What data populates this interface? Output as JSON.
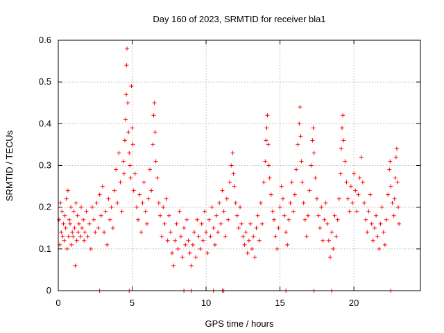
{
  "chart_data": {
    "type": "scatter",
    "title": "Day 160 of 2023, SRMTID for receiver bla1",
    "xlabel": "GPS time / hours",
    "ylabel": "SRMTID / TECUs",
    "xlim": [
      0,
      24.5
    ],
    "ylim": [
      0,
      0.6
    ],
    "xticks": [
      0,
      5,
      10,
      15,
      20
    ],
    "xtick_labels": [
      "0",
      "5",
      "10",
      "15",
      "20"
    ],
    "yticks": [
      0,
      0.1,
      0.2,
      0.3,
      0.4,
      0.5,
      0.6
    ],
    "ytick_labels": [
      "0",
      "0.1",
      "0.2",
      "0.3",
      "0.4",
      "0.5",
      "0.6"
    ],
    "grid": true,
    "marker": "plus",
    "color": "#ff0000",
    "series": [
      {
        "name": "SRMTID",
        "points": [
          [
            0.05,
            0.17
          ],
          [
            0.1,
            0.11
          ],
          [
            0.15,
            0.21
          ],
          [
            0.2,
            0.14
          ],
          [
            0.25,
            0.19
          ],
          [
            0.3,
            0.13
          ],
          [
            0.35,
            0.16
          ],
          [
            0.4,
            0.12
          ],
          [
            0.45,
            0.18
          ],
          [
            0.5,
            0.15
          ],
          [
            0.55,
            0.22
          ],
          [
            0.6,
            0.1
          ],
          [
            0.65,
            0.24
          ],
          [
            0.7,
            0.13
          ],
          [
            0.75,
            0.17
          ],
          [
            0.8,
            0.16
          ],
          [
            0.85,
            0.2
          ],
          [
            0.9,
            0.11
          ],
          [
            0.95,
            0.14
          ],
          [
            1.0,
            0.13
          ],
          [
            1.05,
            0.19
          ],
          [
            1.1,
            0.15
          ],
          [
            1.15,
            0.06
          ],
          [
            1.2,
            0.21
          ],
          [
            1.25,
            0.12
          ],
          [
            1.3,
            0.18
          ],
          [
            1.35,
            0.14
          ],
          [
            1.4,
            0.16
          ],
          [
            1.5,
            0.13
          ],
          [
            1.55,
            0.2
          ],
          [
            1.6,
            0.15
          ],
          [
            1.7,
            0.17
          ],
          [
            1.75,
            0.12
          ],
          [
            1.8,
            0.14
          ],
          [
            1.9,
            0.19
          ],
          [
            2.0,
            0.13
          ],
          [
            2.1,
            0.16
          ],
          [
            2.2,
            0.1
          ],
          [
            2.3,
            0.2
          ],
          [
            2.4,
            0.17
          ],
          [
            2.5,
            0.14
          ],
          [
            2.6,
            0.21
          ],
          [
            2.7,
            0.15
          ],
          [
            2.8,
            0.23
          ],
          [
            2.9,
            0.18
          ],
          [
            3.0,
            0.25
          ],
          [
            3.1,
            0.14
          ],
          [
            3.2,
            0.19
          ],
          [
            3.3,
            0.11
          ],
          [
            3.4,
            0.22
          ],
          [
            3.5,
            0.17
          ],
          [
            3.6,
            0.2
          ],
          [
            3.7,
            0.15
          ],
          [
            3.8,
            0.24
          ],
          [
            3.9,
            0.29
          ],
          [
            4.0,
            0.21
          ],
          [
            4.1,
            0.33
          ],
          [
            4.2,
            0.26
          ],
          [
            4.3,
            0.19
          ],
          [
            4.4,
            0.31
          ],
          [
            4.45,
            0.28
          ],
          [
            4.5,
            0.36
          ],
          [
            4.55,
            0.41
          ],
          [
            4.6,
            0.47
          ],
          [
            4.62,
            0.54
          ],
          [
            4.65,
            0.58
          ],
          [
            4.7,
            0.45
          ],
          [
            4.75,
            0.38
          ],
          [
            4.8,
            0.33
          ],
          [
            4.85,
            0.3
          ],
          [
            4.9,
            0.27
          ],
          [
            4.95,
            0.49
          ],
          [
            5.0,
            0.39
          ],
          [
            5.05,
            0.35
          ],
          [
            5.1,
            0.24
          ],
          [
            5.2,
            0.28
          ],
          [
            5.3,
            0.2
          ],
          [
            5.4,
            0.17
          ],
          [
            5.5,
            0.23
          ],
          [
            5.6,
            0.14
          ],
          [
            5.7,
            0.21
          ],
          [
            5.8,
            0.26
          ],
          [
            5.9,
            0.19
          ],
          [
            6.0,
            0.16
          ],
          [
            6.1,
            0.22
          ],
          [
            6.2,
            0.29
          ],
          [
            6.3,
            0.24
          ],
          [
            6.4,
            0.35
          ],
          [
            6.45,
            0.42
          ],
          [
            6.5,
            0.45
          ],
          [
            6.55,
            0.38
          ],
          [
            6.6,
            0.31
          ],
          [
            6.7,
            0.27
          ],
          [
            6.8,
            0.21
          ],
          [
            6.9,
            0.18
          ],
          [
            7.0,
            0.13
          ],
          [
            7.1,
            0.2
          ],
          [
            7.2,
            0.16
          ],
          [
            7.3,
            0.22
          ],
          [
            7.4,
            0.12
          ],
          [
            7.5,
            0.18
          ],
          [
            7.6,
            0.14
          ],
          [
            7.7,
            0.09
          ],
          [
            7.8,
            0.06
          ],
          [
            7.9,
            0.12
          ],
          [
            8.0,
            0.16
          ],
          [
            8.1,
            0.1
          ],
          [
            8.2,
            0.19
          ],
          [
            8.3,
            0.13
          ],
          [
            8.4,
            0.08
          ],
          [
            8.5,
            0.15
          ],
          [
            8.6,
            0.11
          ],
          [
            8.7,
            0.17
          ],
          [
            8.8,
            0.12
          ],
          [
            8.9,
            0.09
          ],
          [
            9.0,
            0.06
          ],
          [
            9.1,
            0.11
          ],
          [
            9.2,
            0.14
          ],
          [
            9.3,
            0.08
          ],
          [
            9.4,
            0.17
          ],
          [
            9.5,
            0.13
          ],
          [
            9.6,
            0.1
          ],
          [
            9.7,
            0.16
          ],
          [
            9.8,
            0.12
          ],
          [
            9.9,
            0.19
          ],
          [
            10.0,
            0.14
          ],
          [
            10.1,
            0.09
          ],
          [
            10.2,
            0.17
          ],
          [
            10.3,
            0.13
          ],
          [
            10.4,
            0.2
          ],
          [
            10.5,
            0.15
          ],
          [
            10.6,
            0.11
          ],
          [
            10.7,
            0.18
          ],
          [
            10.8,
            0.14
          ],
          [
            10.9,
            0.21
          ],
          [
            11.0,
            0.16
          ],
          [
            11.1,
            0.24
          ],
          [
            11.2,
            0.19
          ],
          [
            11.3,
            0.13
          ],
          [
            11.4,
            0.22
          ],
          [
            11.5,
            0.17
          ],
          [
            11.6,
            0.26
          ],
          [
            11.7,
            0.3
          ],
          [
            11.8,
            0.33
          ],
          [
            11.85,
            0.28
          ],
          [
            11.9,
            0.25
          ],
          [
            12.0,
            0.21
          ],
          [
            12.1,
            0.18
          ],
          [
            12.2,
            0.15
          ],
          [
            12.3,
            0.2
          ],
          [
            12.4,
            0.16
          ],
          [
            12.5,
            0.13
          ],
          [
            12.6,
            0.11
          ],
          [
            12.7,
            0.14
          ],
          [
            12.8,
            0.09
          ],
          [
            12.9,
            0.12
          ],
          [
            13.0,
            0.16
          ],
          [
            13.1,
            0.1
          ],
          [
            13.2,
            0.13
          ],
          [
            13.3,
            0.08
          ],
          [
            13.4,
            0.15
          ],
          [
            13.5,
            0.18
          ],
          [
            13.6,
            0.12
          ],
          [
            13.7,
            0.21
          ],
          [
            13.8,
            0.16
          ],
          [
            13.9,
            0.26
          ],
          [
            14.0,
            0.31
          ],
          [
            14.05,
            0.36
          ],
          [
            14.1,
            0.39
          ],
          [
            14.15,
            0.42
          ],
          [
            14.2,
            0.35
          ],
          [
            14.25,
            0.3
          ],
          [
            14.3,
            0.27
          ],
          [
            14.4,
            0.23
          ],
          [
            14.5,
            0.19
          ],
          [
            14.6,
            0.17
          ],
          [
            14.7,
            0.13
          ],
          [
            14.8,
            0.1
          ],
          [
            14.9,
            0.15
          ],
          [
            15.0,
            0.2
          ],
          [
            15.1,
            0.25
          ],
          [
            15.2,
            0.22
          ],
          [
            15.3,
            0.18
          ],
          [
            15.4,
            0.14
          ],
          [
            15.5,
            0.11
          ],
          [
            15.6,
            0.17
          ],
          [
            15.7,
            0.21
          ],
          [
            15.8,
            0.26
          ],
          [
            15.9,
            0.19
          ],
          [
            16.0,
            0.23
          ],
          [
            16.1,
            0.29
          ],
          [
            16.2,
            0.35
          ],
          [
            16.3,
            0.4
          ],
          [
            16.35,
            0.44
          ],
          [
            16.4,
            0.37
          ],
          [
            16.45,
            0.31
          ],
          [
            16.5,
            0.26
          ],
          [
            16.6,
            0.21
          ],
          [
            16.7,
            0.17
          ],
          [
            16.8,
            0.13
          ],
          [
            16.9,
            0.18
          ],
          [
            17.0,
            0.24
          ],
          [
            17.1,
            0.3
          ],
          [
            17.2,
            0.36
          ],
          [
            17.25,
            0.39
          ],
          [
            17.3,
            0.33
          ],
          [
            17.4,
            0.27
          ],
          [
            17.5,
            0.22
          ],
          [
            17.6,
            0.18
          ],
          [
            17.7,
            0.15
          ],
          [
            17.8,
            0.2
          ],
          [
            17.9,
            0.12
          ],
          [
            18.0,
            0.17
          ],
          [
            18.1,
            0.21
          ],
          [
            18.2,
            0.16
          ],
          [
            18.3,
            0.12
          ],
          [
            18.4,
            0.08
          ],
          [
            18.5,
            0.14
          ],
          [
            18.6,
            0.1
          ],
          [
            18.7,
            0.18
          ],
          [
            18.8,
            0.13
          ],
          [
            18.9,
            0.17
          ],
          [
            19.0,
            0.22
          ],
          [
            19.1,
            0.28
          ],
          [
            19.15,
            0.34
          ],
          [
            19.2,
            0.39
          ],
          [
            19.25,
            0.42
          ],
          [
            19.3,
            0.36
          ],
          [
            19.4,
            0.31
          ],
          [
            19.5,
            0.26
          ],
          [
            19.6,
            0.22
          ],
          [
            19.7,
            0.19
          ],
          [
            19.8,
            0.25
          ],
          [
            19.9,
            0.21
          ],
          [
            20.0,
            0.28
          ],
          [
            20.1,
            0.24
          ],
          [
            20.2,
            0.19
          ],
          [
            20.3,
            0.23
          ],
          [
            20.4,
            0.27
          ],
          [
            20.5,
            0.32
          ],
          [
            20.6,
            0.26
          ],
          [
            20.7,
            0.21
          ],
          [
            20.8,
            0.17
          ],
          [
            20.9,
            0.14
          ],
          [
            21.0,
            0.19
          ],
          [
            21.1,
            0.23
          ],
          [
            21.2,
            0.16
          ],
          [
            21.3,
            0.12
          ],
          [
            21.4,
            0.15
          ],
          [
            21.5,
            0.18
          ],
          [
            21.6,
            0.13
          ],
          [
            21.7,
            0.1
          ],
          [
            21.8,
            0.16
          ],
          [
            21.9,
            0.2
          ],
          [
            22.0,
            0.14
          ],
          [
            22.1,
            0.11
          ],
          [
            22.2,
            0.17
          ],
          [
            22.3,
            0.23
          ],
          [
            22.4,
            0.29
          ],
          [
            22.45,
            0.31
          ],
          [
            22.5,
            0.25
          ],
          [
            22.6,
            0.21
          ],
          [
            22.7,
            0.18
          ],
          [
            22.75,
            0.22
          ],
          [
            22.8,
            0.27
          ],
          [
            22.85,
            0.32
          ],
          [
            22.9,
            0.34
          ],
          [
            22.95,
            0.26
          ],
          [
            23.0,
            0.2
          ],
          [
            23.05,
            0.16
          ],
          [
            8.5,
            0.0
          ],
          [
            9.0,
            0.0
          ],
          [
            10.5,
            0.0
          ],
          [
            11.1,
            0.0
          ],
          [
            11.2,
            0.0
          ],
          [
            15.4,
            0.0
          ],
          [
            17.3,
            0.0
          ],
          [
            18.5,
            0.0
          ],
          [
            22.5,
            0.0
          ],
          [
            2.8,
            0.0
          ],
          [
            4.8,
            0.0
          ]
        ]
      }
    ]
  }
}
